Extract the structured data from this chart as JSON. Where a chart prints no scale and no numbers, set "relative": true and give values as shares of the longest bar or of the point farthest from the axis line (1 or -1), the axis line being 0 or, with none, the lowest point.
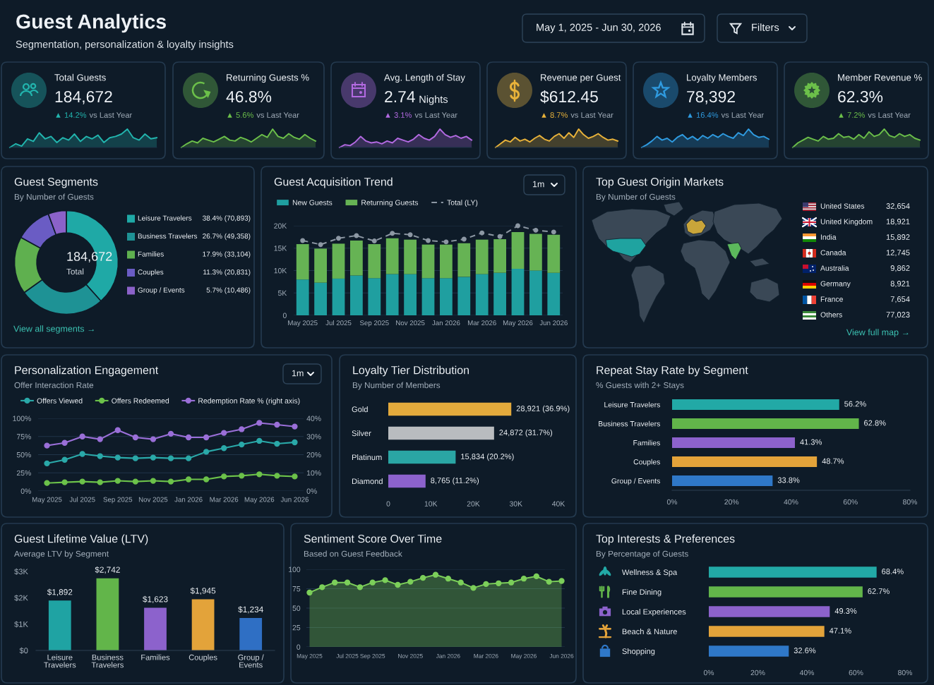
{
  "chart_data": [
    {
      "type": "other",
      "title": "Guest Analytics",
      "subtitle": "Segmentation, personalization & loyalty insights",
      "annotations": [
        "May 1, 2025 - Jun 30, 2026",
        "Filters"
      ]
    },
    {
      "type": "area",
      "relative": true,
      "title": "Total Guests",
      "annotations": [
        "184,672",
        "▲ 14.2%",
        "vs Last Year"
      ],
      "color": "#22b5ae",
      "categories": [
        null,
        null,
        null,
        null,
        null,
        null,
        null,
        null,
        null,
        null,
        null,
        null,
        null,
        null,
        null,
        null,
        null,
        null,
        null,
        null,
        null,
        null,
        null,
        null,
        null,
        null
      ],
      "values": [
        0,
        0.2,
        0.07,
        0.47,
        0.33,
        0.8,
        0.47,
        0.6,
        0.27,
        0.53,
        0.4,
        0.73,
        0.33,
        0.6,
        0.47,
        0.67,
        0.27,
        0.53,
        0.6,
        0.73,
        1,
        0.53,
        0.4,
        0.73,
        0.47,
        0.53
      ]
    },
    {
      "type": "area",
      "relative": true,
      "title": "Returning Guests %",
      "annotations": [
        "46.8%",
        "▲ 5.6%",
        "vs Last Year"
      ],
      "color": "#6cc04a",
      "categories": [
        null,
        null,
        null,
        null,
        null,
        null,
        null,
        null,
        null,
        null,
        null,
        null,
        null,
        null,
        null,
        null,
        null,
        null,
        null,
        null,
        null,
        null,
        null,
        null,
        null,
        null
      ],
      "values": [
        0,
        0.2,
        0.35,
        0.25,
        0.5,
        0.4,
        0.3,
        0.45,
        0.6,
        0.4,
        0.35,
        0.55,
        0.45,
        0.3,
        0.5,
        0.7,
        0.55,
        1,
        0.6,
        0.5,
        0.75,
        0.55,
        0.45,
        0.7,
        0.5,
        0.35
      ]
    },
    {
      "type": "area",
      "relative": true,
      "title": "Avg. Length of Stay",
      "annotations": [
        "2.74",
        "▲ 3.1%",
        "vs Last Year",
        "Nights"
      ],
      "color": "#b36ae2",
      "categories": [
        null,
        null,
        null,
        null,
        null,
        null,
        null,
        null,
        null,
        null,
        null,
        null,
        null,
        null,
        null,
        null,
        null,
        null,
        null,
        null,
        null,
        null,
        null,
        null,
        null,
        null
      ],
      "values": [
        0,
        0.15,
        0.1,
        0.3,
        0.6,
        0.35,
        0.25,
        0.3,
        0.2,
        0.35,
        0.25,
        0.5,
        0.4,
        0.3,
        0.45,
        0.7,
        0.5,
        0.4,
        0.6,
        1,
        0.7,
        0.55,
        0.65,
        0.5,
        0.6,
        0.4
      ]
    },
    {
      "type": "area",
      "relative": true,
      "title": "Revenue per Guest",
      "annotations": [
        "$612.45",
        "▲ 8.7%",
        "vs Last Year"
      ],
      "color": "#e8b23a",
      "categories": [
        null,
        null,
        null,
        null,
        null,
        null,
        null,
        null,
        null,
        null,
        null,
        null,
        null,
        null,
        null,
        null,
        null,
        null,
        null,
        null,
        null,
        null,
        null,
        null,
        null,
        null
      ],
      "values": [
        0,
        0.2,
        0.4,
        0.3,
        0.55,
        0.35,
        0.45,
        0.3,
        0.5,
        0.65,
        0.45,
        0.35,
        0.6,
        0.75,
        0.5,
        0.8,
        0.55,
        1,
        0.7,
        0.5,
        0.6,
        0.75,
        0.55,
        0.4,
        0.45,
        0.35
      ]
    },
    {
      "type": "area",
      "relative": true,
      "title": "Loyalty Members",
      "annotations": [
        "78,392",
        "▲ 16.4%",
        "vs Last Year"
      ],
      "color": "#2f9be0",
      "categories": [
        null,
        null,
        null,
        null,
        null,
        null,
        null,
        null,
        null,
        null,
        null,
        null,
        null,
        null,
        null,
        null,
        null,
        null,
        null,
        null,
        null,
        null,
        null,
        null,
        null,
        null
      ],
      "values": [
        0,
        0.15,
        0.35,
        0.6,
        0.4,
        0.5,
        0.3,
        0.55,
        0.7,
        0.45,
        0.6,
        0.4,
        0.65,
        0.5,
        0.7,
        0.55,
        0.75,
        0.6,
        0.5,
        0.8,
        0.65,
        1,
        0.7,
        0.55,
        0.6,
        0.45
      ]
    },
    {
      "type": "area",
      "relative": true,
      "title": "Member Revenue %",
      "annotations": [
        "62.3%",
        "▲ 7.2%",
        "vs Last Year"
      ],
      "color": "#6cc04a",
      "categories": [
        null,
        null,
        null,
        null,
        null,
        null,
        null,
        null,
        null,
        null,
        null,
        null,
        null,
        null,
        null,
        null,
        null,
        null,
        null,
        null,
        null,
        null,
        null,
        null,
        null,
        null
      ],
      "values": [
        0,
        0.25,
        0.4,
        0.55,
        0.45,
        0.35,
        0.6,
        0.45,
        0.5,
        0.75,
        0.55,
        0.6,
        0.45,
        0.7,
        0.5,
        0.85,
        0.6,
        0.7,
        1,
        0.65,
        0.55,
        0.75,
        0.6,
        0.7,
        0.5,
        0.4
      ]
    },
    {
      "type": "donut",
      "title": "Guest Segments",
      "subtitle": "By Number of Guests",
      "categories": [
        "Leisure Travelers",
        "Business Travelers",
        "Families",
        "Couples",
        "Group / Events"
      ],
      "values": [
        70893,
        49358,
        33104,
        20831,
        10486
      ],
      "colors": [
        "#1fa9a6",
        "#1e9295",
        "#5fb04f",
        "#6a5cc4",
        "#8b62c9"
      ],
      "value_labels": [
        "38.4% (70,893)",
        "26.7% (49,358)",
        "17.9% (33,104)",
        "11.3% (20,831)",
        "5.7% (10,486)"
      ],
      "legend": "right",
      "annotations": [
        "184,672",
        "Total",
        "View all segments →"
      ]
    },
    {
      "type": "bar",
      "stacked": true,
      "title": "Guest Acquisition Trend",
      "categories": [
        "May 2025",
        null,
        "Jul 2025",
        null,
        "Sep 2025",
        null,
        "Nov 2025",
        null,
        "Jan 2026",
        null,
        "Mar 2026",
        null,
        "May 2026",
        null,
        "Jun 2026"
      ],
      "series": [
        {
          "name": "New Guests",
          "color": "#1f9fa0",
          "values": [
            8000,
            7300,
            8200,
            8900,
            8300,
            9200,
            9200,
            8300,
            8300,
            8600,
            9200,
            9500,
            10400,
            10000,
            9500
          ]
        },
        {
          "name": "Returning Guests",
          "color": "#66b354",
          "values": [
            7900,
            7600,
            7800,
            7800,
            7600,
            8000,
            7700,
            7500,
            7500,
            7500,
            7700,
            7500,
            8200,
            8200,
            8500
          ]
        },
        {
          "name": "Total (LY)",
          "type": "line",
          "color": "#8d98a4",
          "line_style": "dashed",
          "marker": "circle",
          "values": [
            16700,
            15800,
            17200,
            17800,
            16600,
            18300,
            18000,
            16700,
            16400,
            17000,
            18400,
            17600,
            20000,
            19000,
            18600
          ]
        }
      ],
      "ylim": [
        0,
        20000
      ],
      "yticks": [
        0,
        {
          "value": 5000,
          "label": "5K"
        },
        {
          "value": 10000,
          "label": "10K"
        },
        {
          "value": 15000,
          "label": "15K"
        },
        {
          "value": 20000,
          "label": "20K"
        }
      ],
      "grid": "y",
      "legend": "top left",
      "annotations": [
        "1m"
      ]
    },
    {
      "type": "other",
      "title": "Top Guest Origin Markets",
      "subtitle": "By Number of Guests",
      "categories": [
        "United States",
        "United Kingdom",
        "India",
        "Canada",
        "Australia",
        "Germany",
        "France",
        "Others"
      ],
      "value_labels": [
        "32,654",
        "18,921",
        "15,892",
        "12,745",
        "9,862",
        "8,921",
        "7,654",
        "77,023"
      ],
      "annotations": [
        "View full map →"
      ]
    },
    {
      "type": "line",
      "title": "Personalization Engagement",
      "subtitle": "Offer Interaction Rate",
      "categories": [
        "May 2025",
        null,
        "Jul 2025",
        null,
        "Sep 2025",
        null,
        "Nov 2025",
        null,
        "Jan 2026",
        null,
        "Mar 2026",
        null,
        "May 2026",
        null,
        "Jun 2026"
      ],
      "series": [
        {
          "name": "Offers Viewed",
          "color": "#2aa9a9",
          "values": [
            38,
            43,
            51,
            48,
            46,
            45,
            46,
            45,
            45,
            54,
            59,
            64,
            69,
            65,
            67
          ]
        },
        {
          "name": "Offers Redeemed",
          "color": "#6cc24a",
          "values": [
            11,
            12,
            13,
            12,
            14,
            13,
            14,
            13,
            16,
            16,
            20,
            21,
            23,
            21,
            20
          ]
        },
        {
          "name": "Redemption Rate % (right axis)",
          "color": "#9a6fd8",
          "axis": "y2",
          "values": [
            25,
            26.5,
            30,
            28.5,
            33.5,
            29.5,
            28.5,
            31.5,
            29.5,
            29.5,
            32,
            34,
            37.5,
            36.5,
            35.5
          ]
        }
      ],
      "ylim": [
        0,
        100
      ],
      "yticks": [
        {
          "value": 0,
          "label": "0%"
        },
        {
          "value": 25,
          "label": "25%"
        },
        {
          "value": 50,
          "label": "50%"
        },
        {
          "value": 75,
          "label": "75%"
        },
        {
          "value": 100,
          "label": "100%"
        }
      ],
      "y2lim": [
        0,
        40
      ],
      "y2ticks": [
        {
          "value": 0,
          "label": "0%"
        },
        {
          "value": 10,
          "label": "10%"
        },
        {
          "value": 20,
          "label": "20%"
        },
        {
          "value": 30,
          "label": "30%"
        },
        {
          "value": 40,
          "label": "40%"
        }
      ],
      "marker": "circle",
      "grid": "y",
      "legend": "top left",
      "annotations": [
        "1m"
      ]
    },
    {
      "type": "bar",
      "orientation": "horizontal",
      "title": "Loyalty Tier Distribution",
      "subtitle": "By Number of Members",
      "categories": [
        "Gold",
        "Silver",
        "Platinum",
        "Diamond"
      ],
      "values": [
        28921,
        24872,
        15834,
        8765
      ],
      "colors": [
        "#e3aa3c",
        "#b9bcbf",
        "#2aa6a4",
        "#8c62cc"
      ],
      "value_labels": [
        "28,921 (36.9%)",
        "24,872 (31.7%)",
        "15,834 (20.2%)",
        "8,765 (11.2%)"
      ],
      "xlim": [
        0,
        40000
      ],
      "xticks": [
        0,
        {
          "value": 10000,
          "label": "10K"
        },
        {
          "value": 20000,
          "label": "20K"
        },
        {
          "value": 30000,
          "label": "30K"
        },
        {
          "value": 40000,
          "label": "40K"
        }
      ]
    },
    {
      "type": "bar",
      "orientation": "horizontal",
      "title": "Repeat Stay Rate by Segment",
      "subtitle": "% Guests with 2+ Stays",
      "categories": [
        "Leisure Travelers",
        "Business Travelers",
        "Families",
        "Couples",
        "Group / Events"
      ],
      "values": [
        56.2,
        62.8,
        41.3,
        48.7,
        33.8
      ],
      "colors": [
        "#22a9a6",
        "#62b54a",
        "#8c62cc",
        "#e3a33a",
        "#2f78c8"
      ],
      "value_labels": [
        "56.2%",
        "62.8%",
        "41.3%",
        "48.7%",
        "33.8%"
      ],
      "xlim": [
        0,
        80
      ],
      "xticks": [
        {
          "value": 0,
          "label": "0%"
        },
        {
          "value": 20,
          "label": "20%"
        },
        {
          "value": 40,
          "label": "40%"
        },
        {
          "value": 60,
          "label": "60%"
        },
        {
          "value": 80,
          "label": "80%"
        }
      ]
    },
    {
      "type": "bar",
      "title": "Guest Lifetime Value (LTV)",
      "subtitle": "Average LTV by Segment",
      "categories": [
        "Leisure Travelers",
        "Business Travelers",
        "Families",
        "Couples",
        "Group / Events"
      ],
      "values": [
        1892,
        2742,
        1623,
        1945,
        1234
      ],
      "colors": [
        "#1fa3a3",
        "#62b54a",
        "#8c62cc",
        "#e3a33a",
        "#2f6fc4"
      ],
      "value_labels": [
        "$1,892",
        "$2,742",
        "$1,623",
        "$1,945",
        "$1,234"
      ],
      "ylim": [
        0,
        3000
      ],
      "yticks": [
        {
          "value": 0,
          "label": "$0"
        },
        {
          "value": 1000,
          "label": "$1K"
        },
        {
          "value": 2000,
          "label": "$2K"
        },
        {
          "value": 3000,
          "label": "$3K"
        }
      ]
    },
    {
      "type": "area",
      "title": "Sentiment Score Over Time",
      "subtitle": "Based on Guest Feedback",
      "categories": [
        "May 2025",
        null,
        null,
        "Jul 2025",
        null,
        "Sep 2025",
        null,
        null,
        "Nov 2025",
        null,
        null,
        "Jan 2026",
        null,
        null,
        "Mar 2026",
        null,
        null,
        "May 2026",
        null,
        null,
        "Jun 2026"
      ],
      "values": [
        70,
        77,
        83,
        83,
        77,
        83,
        86,
        80,
        84,
        89,
        93,
        88,
        83,
        76,
        81,
        82,
        83,
        88,
        91,
        84,
        85
      ],
      "color": "#7ccf5a",
      "marker": "circle",
      "ylim": [
        0,
        100
      ],
      "yticks": [
        0,
        25,
        50,
        75,
        100
      ],
      "grid": "y"
    },
    {
      "type": "bar",
      "orientation": "horizontal",
      "title": "Top Interests & Preferences",
      "subtitle": "By Percentage of Guests",
      "categories": [
        "Wellness & Spa",
        "Fine Dining",
        "Local Experiences",
        "Beach & Nature",
        "Shopping"
      ],
      "values": [
        68.4,
        62.7,
        49.3,
        47.1,
        32.6
      ],
      "colors": [
        "#22a9a6",
        "#62b54a",
        "#8c62cc",
        "#e3a33a",
        "#2f78c8"
      ],
      "value_labels": [
        "68.4%",
        "62.7%",
        "49.3%",
        "47.1%",
        "32.6%"
      ],
      "xlim": [
        0,
        80
      ],
      "xticks": [
        {
          "value": 0,
          "label": "0%"
        },
        {
          "value": 20,
          "label": "20%"
        },
        {
          "value": 40,
          "label": "40%"
        },
        {
          "value": 60,
          "label": "60%"
        },
        {
          "value": 80,
          "label": "80%"
        }
      ]
    }
  ]
}
